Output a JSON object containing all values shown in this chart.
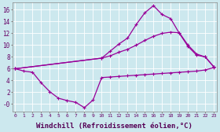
{
  "background_color": "#cce8ee",
  "grid_color": "#b0d0d8",
  "line_color": "#990099",
  "xlabel": "Windchill (Refroidissement éolien,°C)",
  "xlabel_fontsize": 6.5,
  "ytick_labels": [
    "-0",
    "2",
    "4",
    "6",
    "8",
    "10",
    "12",
    "14",
    "16"
  ],
  "ytick_vals": [
    0,
    2,
    4,
    6,
    8,
    10,
    12,
    14,
    16
  ],
  "xtick_vals": [
    0,
    1,
    2,
    3,
    4,
    5,
    6,
    7,
    8,
    9,
    10,
    11,
    12,
    13,
    14,
    15,
    16,
    17,
    18,
    19,
    20,
    21,
    22,
    23
  ],
  "xlim": [
    -0.3,
    23.3
  ],
  "ylim": [
    -1.2,
    17.2
  ],
  "line1_x": [
    0,
    1,
    2,
    3,
    4,
    5,
    6,
    7,
    8,
    9,
    10,
    11,
    12,
    13,
    14,
    15,
    16,
    17,
    18,
    19,
    20,
    21,
    22,
    23
  ],
  "line1_y": [
    6.0,
    5.6,
    5.4,
    3.6,
    2.1,
    1.0,
    0.6,
    0.3,
    -0.6,
    0.7,
    4.5,
    4.6,
    4.7,
    4.8,
    4.9,
    5.0,
    5.1,
    5.2,
    5.3,
    5.4,
    5.5,
    5.6,
    5.8,
    6.2
  ],
  "line2_x": [
    0,
    10,
    11,
    12,
    13,
    14,
    15,
    16,
    17,
    18,
    19,
    20,
    21,
    22,
    23
  ],
  "line2_y": [
    6.0,
    7.8,
    9.0,
    10.2,
    11.2,
    13.5,
    15.5,
    16.7,
    15.2,
    14.5,
    12.0,
    9.8,
    8.3,
    8.0,
    6.3
  ],
  "line3_x": [
    0,
    10,
    11,
    12,
    13,
    14,
    15,
    16,
    17,
    18,
    19,
    20,
    21,
    22,
    23
  ],
  "line3_y": [
    6.0,
    7.8,
    8.2,
    8.8,
    9.3,
    10.0,
    10.8,
    11.5,
    12.0,
    12.2,
    12.1,
    10.0,
    8.5,
    8.0,
    6.3
  ]
}
